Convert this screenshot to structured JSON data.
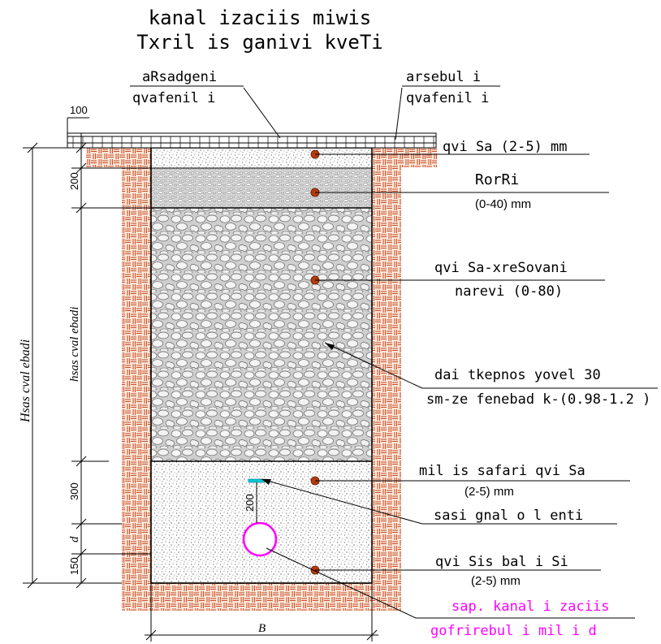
{
  "title": {
    "line1": "kanal izaciis miwis",
    "line2": "Txril is ganivi kveTi"
  },
  "top_labels": {
    "restored_cover": [
      "aRsadgeni",
      "qvafenil i"
    ],
    "existing_cover": [
      "arsebul i",
      "qvafenil i"
    ],
    "dim_100": "100"
  },
  "layers": [
    {
      "name": "sand-layer-top",
      "label": [
        "qvi Sa (2-5) mm"
      ]
    },
    {
      "name": "gravel-layer",
      "label": [
        "RorRi",
        "(0-40) mm"
      ]
    },
    {
      "name": "sand-gravel-mix-layer",
      "label": [
        "qvi Sa-xreSovani",
        "narevi (0-80)"
      ]
    },
    {
      "name": "compaction-note",
      "label": [
        "dai tkepnos yovel 30",
        "sm-ze fenebad k-(0.98-1.2 )"
      ]
    },
    {
      "name": "pipe-zone-sand",
      "label": [
        "mil is safari qvi Sa",
        "(2-5) mm"
      ]
    },
    {
      "name": "signal-tape",
      "label": [
        "sasi gnal o l enti"
      ]
    },
    {
      "name": "sand-bedding",
      "label": [
        "qvi Sis bal i Si",
        "(2-5) mm"
      ]
    },
    {
      "name": "corrugated-pipe",
      "label": [
        "sap. kanal i zaciis",
        "gofrirebul i mil i d"
      ]
    }
  ],
  "dimensions": {
    "left_outer": "Hsas cval ebadi",
    "left_inner": "hsas cval ebadi",
    "dim_200": "200",
    "dim_300": "300",
    "dim_d": "d",
    "dim_150": "150",
    "dim_200_tape": "200",
    "width_B": "B"
  },
  "colors": {
    "brick": "#c8502a",
    "brick_bg": "#fbe9dc",
    "marker": "#b83a0a",
    "pipe": "#ff00ff",
    "tape": "#00c8d8"
  }
}
